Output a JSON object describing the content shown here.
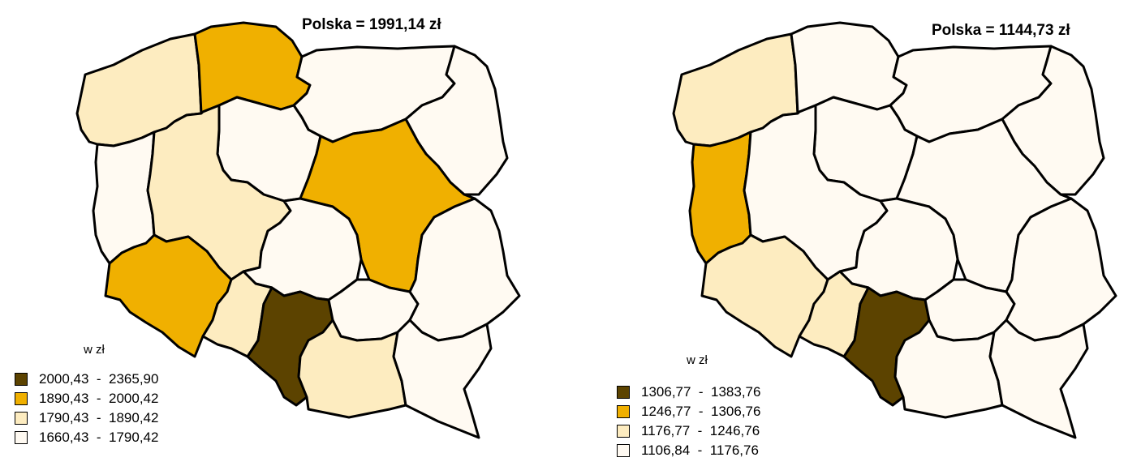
{
  "colors": {
    "c1": "#5c4300",
    "c2": "#f0b000",
    "c3": "#fdecc0",
    "c4": "#fffaf2",
    "outline": "#000000"
  },
  "maps": [
    {
      "title": "Polska = 1991,14 zł",
      "unit_label": "w zł",
      "legend": [
        {
          "label": "2000,43  -  2365,90",
          "color": "#5c4300"
        },
        {
          "label": "1890,43  -  2000,42",
          "color": "#f0b000"
        },
        {
          "label": "1790,43  -  1890,42",
          "color": "#fdecc0"
        },
        {
          "label": "1660,43  -  1790,42",
          "color": "#fffaf2"
        }
      ],
      "region_classes": {
        "zachodniopomorskie": 3,
        "pomorskie": 2,
        "warminsko_mazurskie": 4,
        "podlaskie": 4,
        "kujawsko_pomorskie": 4,
        "lubuskie": 4,
        "wielkopolskie": 3,
        "mazowieckie": 2,
        "lodzkie": 4,
        "dolnoslaskie": 2,
        "opolskie": 3,
        "slaskie": 1,
        "swietokrzyskie": 4,
        "lubelskie": 4,
        "malopolskie": 3,
        "podkarpackie": 4
      }
    },
    {
      "title": "Polska = 1144,73 zł",
      "unit_label": "w zł",
      "legend": [
        {
          "label": "1306,77  -  1383,76",
          "color": "#5c4300"
        },
        {
          "label": "1246,77  -  1306,76",
          "color": "#f0b000"
        },
        {
          "label": "1176,77  -  1246,76",
          "color": "#fdecc0"
        },
        {
          "label": "1106,84  -  1176,76",
          "color": "#fffaf2"
        }
      ],
      "region_classes": {
        "zachodniopomorskie": 3,
        "pomorskie": 4,
        "warminsko_mazurskie": 4,
        "podlaskie": 4,
        "kujawsko_pomorskie": 4,
        "lubuskie": 2,
        "wielkopolskie": 4,
        "mazowieckie": 4,
        "lodzkie": 4,
        "dolnoslaskie": 3,
        "opolskie": 3,
        "slaskie": 1,
        "swietokrzyskie": 4,
        "lubelskie": 4,
        "malopolskie": 4,
        "podkarpackie": 4
      }
    }
  ]
}
